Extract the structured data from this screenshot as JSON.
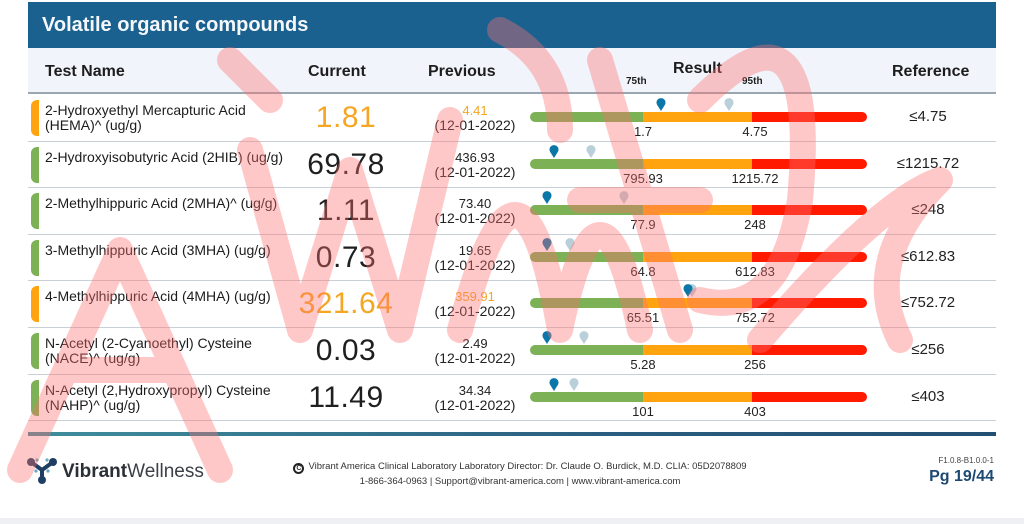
{
  "section_title": "Volatile organic compounds",
  "headers": {
    "test_name": "Test Name",
    "current": "Current",
    "previous": "Previous",
    "result": "Result",
    "p75": "75th",
    "p95": "95th",
    "reference": "Reference"
  },
  "colors": {
    "title_bar": "#1a6190",
    "normal": "#7cb155",
    "moderate": "#ffa40e",
    "high": "#ff1a00",
    "current_marker": "#0b77a8",
    "previous_marker": "#b9cfd9",
    "orange_text": "#f5a623",
    "page_number": "#1d4a72"
  },
  "rows": [
    {
      "name": "2-Hydroxyethyl Mercapturic Acid (HEMA)^ (ug/g)",
      "current": "1.81",
      "previous": "4.41",
      "previous_date": "(12-01-2022)",
      "status": "moderate",
      "p75": "1.7",
      "p95": "4.75",
      "reference": "≤4.75",
      "current_pos": 0.39,
      "previous_pos": 0.59
    },
    {
      "name": "2-Hydroxyisobutyric Acid (2HIB) (ug/g)",
      "current": "69.78",
      "previous": "436.93",
      "previous_date": "(12-01-2022)",
      "status": "normal",
      "p75": "795.93",
      "p95": "1215.72",
      "reference": "≤1215.72",
      "current_pos": 0.07,
      "previous_pos": 0.18
    },
    {
      "name": "2-Methylhippuric Acid (2MHA)^ (ug/g)",
      "current": "1.11",
      "previous": "73.40",
      "previous_date": "(12-01-2022)",
      "status": "normal",
      "p75": "77.9",
      "p95": "248",
      "reference": "≤248",
      "current_pos": 0.05,
      "previous_pos": 0.28
    },
    {
      "name": "3-Methylhippuric Acid (3MHA) (ug/g)",
      "current": "0.73",
      "previous": "19.65",
      "previous_date": "(12-01-2022)",
      "status": "normal",
      "p75": "64.8",
      "p95": "612.83",
      "reference": "≤612.83",
      "current_pos": 0.05,
      "previous_pos": 0.12
    },
    {
      "name": "4-Methylhippuric Acid (4MHA) (ug/g)",
      "current": "321.64",
      "previous": "359.91",
      "previous_date": "(12-01-2022)",
      "status": "moderate",
      "p75": "65.51",
      "p95": "752.72",
      "reference": "≤752.72",
      "current_pos": 0.47,
      "previous_pos": 0.48
    },
    {
      "name": "N-Acetyl (2-Cyanoethyl) Cysteine (NACE)^ (ug/g)",
      "current": "0.03",
      "previous": "2.49",
      "previous_date": "(12-01-2022)",
      "status": "normal",
      "p75": "5.28",
      "p95": "256",
      "reference": "≤256",
      "current_pos": 0.05,
      "previous_pos": 0.16
    },
    {
      "name": "N-Acetyl (2,Hydroxypropyl) Cysteine (NAHP)^ (ug/g)",
      "current": "11.49",
      "previous": "34.34",
      "previous_date": "(12-01-2022)",
      "status": "normal",
      "p75": "101",
      "p95": "403",
      "reference": "≤403",
      "current_pos": 0.07,
      "previous_pos": 0.13
    }
  ],
  "footer": {
    "logo_bold": "Vibrant",
    "logo_light": "Wellness",
    "copyright_symbol": "C",
    "line1": "Vibrant America Clinical Laboratory Laboratory Director: Dr. Claude O. Burdick, M.D. CLIA: 05D2078809",
    "line2": "1-866-364-0963 | Support@vibrant-america.com | www.vibrant-america.com",
    "version": "F1.0.8-B1.0.0-1",
    "page": "Pg 19/44"
  }
}
